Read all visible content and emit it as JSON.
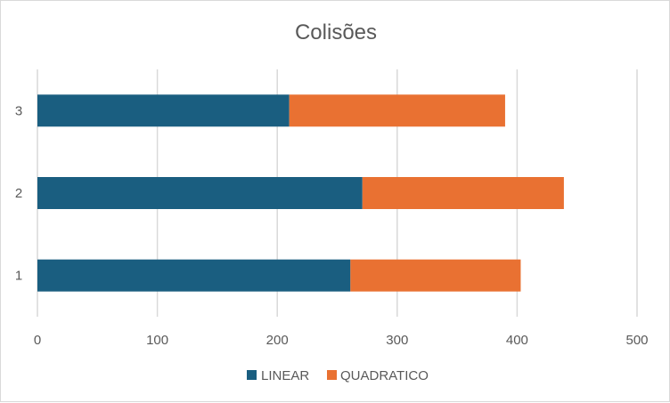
{
  "chart_data": {
    "type": "bar",
    "orientation": "horizontal",
    "stacked": true,
    "title": "Colisões",
    "categories": [
      "1",
      "2",
      "3"
    ],
    "series": [
      {
        "name": "LINEAR",
        "color": "#1a5e80",
        "values": [
          261,
          271,
          210
        ]
      },
      {
        "name": "QUADRATICO",
        "color": "#e97132",
        "values": [
          142,
          168,
          180
        ]
      }
    ],
    "xlim": [
      0,
      500
    ],
    "x_ticks": [
      "0",
      "100",
      "200",
      "300",
      "400",
      "500"
    ],
    "xlabel": "",
    "ylabel": "",
    "grid": "vertical",
    "legend_position": "bottom"
  }
}
